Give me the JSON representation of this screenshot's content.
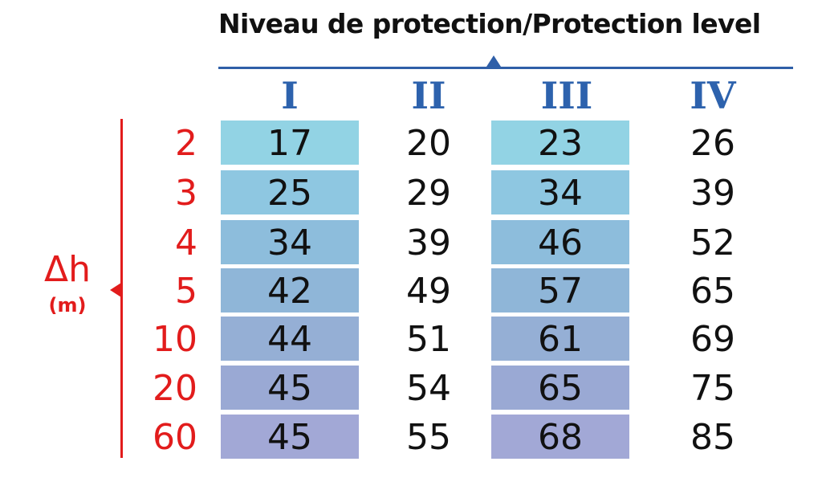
{
  "header": {
    "title": "Niveau de protection/Protection level",
    "accent_color": "#2f5fa8"
  },
  "axis": {
    "symbol": "Δh",
    "unit": "(m)",
    "color": "#e21c1c"
  },
  "table": {
    "columns": [
      "I",
      "II",
      "III",
      "IV"
    ],
    "rows": [
      {
        "dh": "2",
        "values": [
          "17",
          "20",
          "23",
          "26"
        ]
      },
      {
        "dh": "3",
        "values": [
          "25",
          "29",
          "34",
          "39"
        ]
      },
      {
        "dh": "4",
        "values": [
          "34",
          "39",
          "46",
          "52"
        ]
      },
      {
        "dh": "5",
        "values": [
          "42",
          "49",
          "57",
          "65"
        ]
      },
      {
        "dh": "10",
        "values": [
          "44",
          "51",
          "61",
          "69"
        ]
      },
      {
        "dh": "20",
        "values": [
          "45",
          "54",
          "65",
          "75"
        ]
      },
      {
        "dh": "60",
        "values": [
          "45",
          "55",
          "68",
          "85"
        ]
      }
    ],
    "shade_colors": [
      "#92d3e4",
      "#8ec7e1",
      "#8dbddc",
      "#8fb6d8",
      "#95afd5",
      "#9aa9d4",
      "#a2a8d6"
    ]
  }
}
